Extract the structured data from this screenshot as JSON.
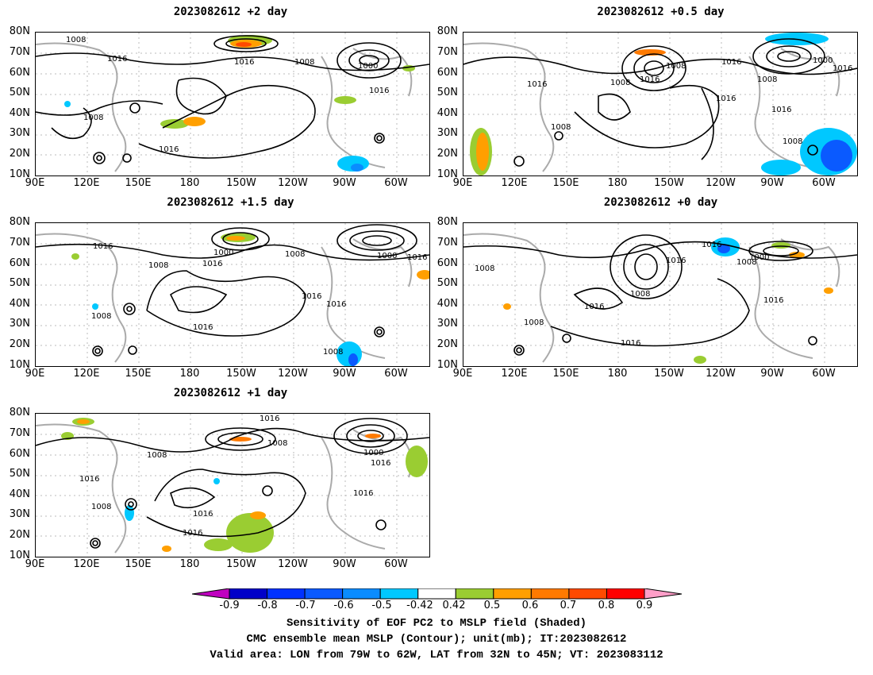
{
  "panels": [
    {
      "title": "2023082612 +2 day",
      "labels": [
        "1008",
        "1016",
        "1008",
        "1000",
        "1016",
        "1008",
        "1016",
        "1016"
      ]
    },
    {
      "title": "2023082612 +0.5 day",
      "labels": [
        "1008",
        "1016",
        "1008",
        "1016",
        "1016",
        "1000",
        "1008",
        "1016",
        "1016",
        "1016",
        "1008",
        "1008"
      ]
    },
    {
      "title": "2023082612 +1.5 day",
      "labels": [
        "1016",
        "1008",
        "1000",
        "1016",
        "1008",
        "1000",
        "1016",
        "1008",
        "1016",
        "1016",
        "1016",
        "1008"
      ]
    },
    {
      "title": "2023082612 +0 day",
      "labels": [
        "1008",
        "1016",
        "1016",
        "1008",
        "1000",
        "1016",
        "1008",
        "1016",
        "1008",
        "1016"
      ]
    },
    {
      "title": "2023082612 +1 day",
      "labels": [
        "1016",
        "1008",
        "1008",
        "1016",
        "1008",
        "1016",
        "1016",
        "1000",
        "1016",
        "1016"
      ]
    }
  ],
  "lat_labels": [
    "80N",
    "70N",
    "60N",
    "50N",
    "40N",
    "30N",
    "20N",
    "10N"
  ],
  "lon_labels": [
    "90E",
    "120E",
    "150E",
    "180",
    "150W",
    "120W",
    "90W",
    "60W"
  ],
  "colorbar": {
    "ticks": [
      "-0.9",
      "-0.8",
      "-0.7",
      "-0.6",
      "-0.5",
      "-0.42",
      "0.42",
      "0.5",
      "0.6",
      "0.7",
      "0.8",
      "0.9"
    ],
    "colors": {
      "below": "#c000c0",
      "bins": [
        "#0000c8",
        "#0032ff",
        "#0a5aff",
        "#0a8cff",
        "#00c8ff",
        "#ffffff",
        "#9acd32",
        "#ff9f00",
        "#ff7a00",
        "#ff4a00",
        "#ff0000"
      ],
      "above": "#ff9ec8"
    }
  },
  "caption": {
    "line1": "Sensitivity of EOF PC2 to MSLP field (Shaded)",
    "line2": "CMC ensemble mean MSLP (Contour); unit(mb); IT:2023082612",
    "line3": "Valid area: LON from 79W to 62W, LAT from 32N to 45N; VT: 2023083112"
  }
}
